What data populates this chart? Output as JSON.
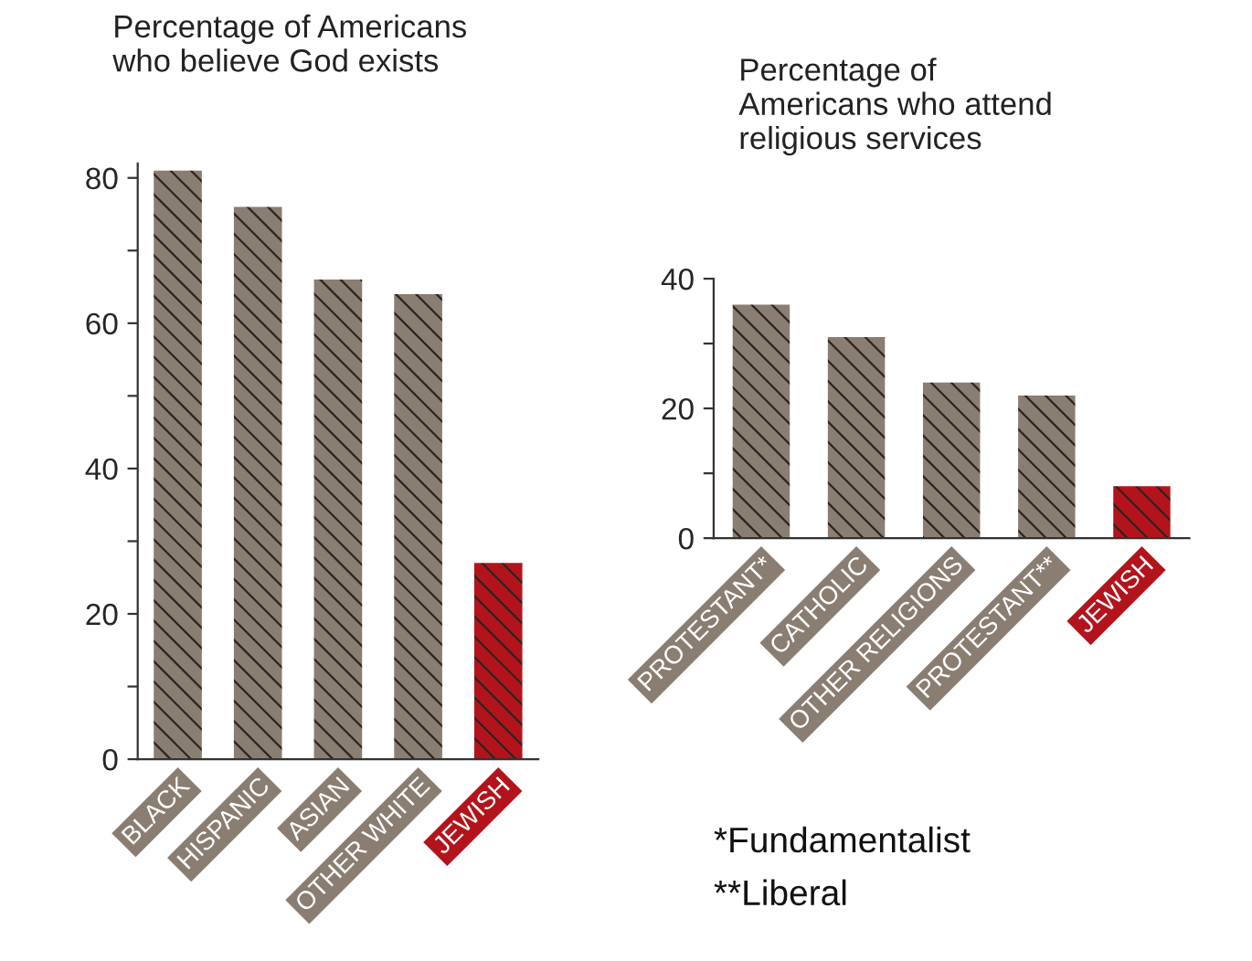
{
  "chart_data": [
    {
      "type": "bar",
      "title": "Percentage of Americans\nwho believe God exists",
      "categories": [
        "BLACK",
        "HISPANIC",
        "ASIAN",
        "OTHER WHITE",
        "JEWISH"
      ],
      "values": [
        81,
        76,
        66,
        64,
        27
      ],
      "colors": [
        "#8a7d72",
        "#8a7d72",
        "#8a7d72",
        "#8a7d72",
        "#b3141c"
      ],
      "ylim": [
        0,
        82
      ],
      "yticks": [
        0,
        {
          "value": 10,
          "label": null
        },
        20,
        {
          "value": 30,
          "label": null
        },
        40,
        {
          "value": 50,
          "label": null
        },
        60,
        {
          "value": 70,
          "label": null
        },
        80
      ],
      "grid": false
    },
    {
      "type": "bar",
      "title": "Percentage of\nAmericans who attend\nreligious services",
      "categories": [
        "PROTESTANT*",
        "CATHOLIC",
        "OTHER RELIGIONS",
        "PROTESTANT**",
        "JEWISH"
      ],
      "values": [
        36,
        31,
        24,
        22,
        8
      ],
      "colors": [
        "#8a7d72",
        "#8a7d72",
        "#8a7d72",
        "#8a7d72",
        "#b3141c"
      ],
      "ylim": [
        0,
        40
      ],
      "yticks": [
        0,
        {
          "value": 10,
          "label": null
        },
        20,
        {
          "value": 30,
          "label": null
        },
        40
      ],
      "grid": false,
      "annotations": [
        "*Fundamentalist",
        "**Liberal"
      ]
    }
  ]
}
